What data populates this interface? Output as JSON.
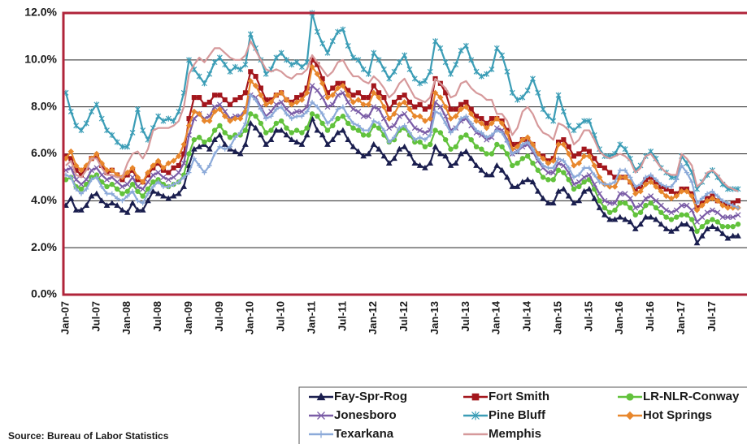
{
  "chart_data": {
    "type": "line",
    "source": "Source: Bureau of Labor Statistics",
    "categories": [
      "Jan-07",
      null,
      null,
      null,
      null,
      null,
      "Jul-07",
      null,
      null,
      null,
      null,
      null,
      "Jan-08",
      null,
      null,
      null,
      null,
      null,
      "Jul-08",
      null,
      null,
      null,
      null,
      null,
      "Jan-09",
      null,
      null,
      null,
      null,
      null,
      "Jul-09",
      null,
      null,
      null,
      null,
      null,
      "Jan-10",
      null,
      null,
      null,
      null,
      null,
      "Jul-10",
      null,
      null,
      null,
      null,
      null,
      "Jan-11",
      null,
      null,
      null,
      null,
      null,
      "Jul-11",
      null,
      null,
      null,
      null,
      null,
      "Jan-12",
      null,
      null,
      null,
      null,
      null,
      "Jul-12",
      null,
      null,
      null,
      null,
      null,
      "Jan-13",
      null,
      null,
      null,
      null,
      null,
      "Jul-13",
      null,
      null,
      null,
      null,
      null,
      "Jan-14",
      null,
      null,
      null,
      null,
      null,
      "Jul-14",
      null,
      null,
      null,
      null,
      null,
      "Jan-15",
      null,
      null,
      null,
      null,
      null,
      "Jul-15",
      null,
      null,
      null,
      null,
      null,
      "Jan-16",
      null,
      null,
      null,
      null,
      null,
      "Jul-16",
      null,
      null,
      null,
      null,
      null,
      "Jan-17",
      null,
      null,
      null,
      null,
      null,
      "Jul-17",
      null,
      null,
      null,
      null,
      null
    ],
    "ylim": [
      0,
      12
    ],
    "yticks": [
      {
        "value": 0,
        "label": "0.0%"
      },
      {
        "value": 2,
        "label": "2.0%"
      },
      {
        "value": 4,
        "label": "4.0%"
      },
      {
        "value": 6,
        "label": "6.0%"
      },
      {
        "value": 8,
        "label": "8.0%"
      },
      {
        "value": 10,
        "label": "10.0%"
      },
      {
        "value": 12,
        "label": "12.0%"
      }
    ],
    "grid": true,
    "series": [
      {
        "name": "Fay-Spr-Rog",
        "color": "#1b1f4f",
        "marker": "triangle",
        "values": [
          3.8,
          4.1,
          3.6,
          3.6,
          3.8,
          4.2,
          4.3,
          4.0,
          3.8,
          3.9,
          3.8,
          3.6,
          3.5,
          3.9,
          3.6,
          3.6,
          4.0,
          4.4,
          4.3,
          4.2,
          4.1,
          4.2,
          4.3,
          4.6,
          5.5,
          6.2,
          6.3,
          6.4,
          6.2,
          6.6,
          6.8,
          6.4,
          6.2,
          6.1,
          6.0,
          6.4,
          7.3,
          7.1,
          6.8,
          6.4,
          6.6,
          7.0,
          7.0,
          6.8,
          6.6,
          6.5,
          6.4,
          6.8,
          7.5,
          7.0,
          6.8,
          6.4,
          6.6,
          6.9,
          7.0,
          6.6,
          6.3,
          6.1,
          5.9,
          6.0,
          6.4,
          6.2,
          5.9,
          5.6,
          5.8,
          6.2,
          6.3,
          6.0,
          5.6,
          5.5,
          5.4,
          5.6,
          6.3,
          6.0,
          5.9,
          5.5,
          5.6,
          6.0,
          6.1,
          5.8,
          5.5,
          5.3,
          5.1,
          5.1,
          5.5,
          5.3,
          5.0,
          4.6,
          4.6,
          4.8,
          4.9,
          4.8,
          4.4,
          4.1,
          3.9,
          3.9,
          4.4,
          4.5,
          4.2,
          3.9,
          4.0,
          4.4,
          4.5,
          4.1,
          3.7,
          3.4,
          3.2,
          3.2,
          3.3,
          3.2,
          3.1,
          2.8,
          3.0,
          3.3,
          3.3,
          3.2,
          3.0,
          2.8,
          2.7,
          2.8,
          3.0,
          3.0,
          2.8,
          2.2,
          2.5,
          2.8,
          2.9,
          2.8,
          2.6,
          2.4,
          2.5,
          2.5
        ]
      },
      {
        "name": "Fort Smith",
        "color": "#a3161c",
        "marker": "square",
        "values": [
          5.9,
          5.8,
          5.3,
          5.1,
          5.4,
          5.8,
          5.9,
          5.5,
          5.2,
          5.3,
          5.1,
          4.9,
          5.1,
          5.3,
          4.9,
          4.8,
          5.1,
          5.4,
          5.6,
          5.3,
          5.2,
          5.4,
          5.5,
          6.0,
          7.5,
          8.4,
          8.4,
          8.1,
          8.2,
          8.5,
          8.5,
          8.3,
          8.1,
          8.3,
          8.4,
          8.6,
          9.5,
          9.3,
          8.8,
          8.3,
          8.3,
          8.5,
          8.6,
          8.3,
          8.2,
          8.4,
          8.5,
          8.8,
          10.0,
          9.8,
          9.2,
          8.6,
          8.8,
          9.0,
          9.0,
          8.7,
          8.5,
          8.6,
          8.4,
          8.4,
          8.9,
          8.6,
          8.4,
          7.9,
          8.2,
          8.4,
          8.5,
          8.2,
          8.0,
          8.1,
          7.9,
          8.0,
          9.2,
          9.0,
          8.6,
          7.9,
          7.9,
          8.1,
          8.2,
          7.9,
          7.6,
          7.5,
          7.3,
          7.5,
          7.5,
          7.4,
          7.0,
          6.4,
          6.4,
          6.6,
          6.6,
          6.4,
          6.0,
          5.9,
          5.7,
          5.8,
          6.5,
          6.6,
          6.3,
          5.9,
          6.0,
          6.2,
          6.1,
          5.8,
          5.5,
          5.4,
          5.2,
          5.0,
          5.0,
          5.0,
          4.8,
          4.5,
          4.6,
          4.9,
          5.0,
          4.8,
          4.6,
          4.5,
          4.4,
          4.3,
          4.5,
          4.5,
          4.3,
          3.7,
          3.9,
          4.1,
          4.2,
          4.0,
          3.9,
          3.8,
          3.9,
          4.0
        ]
      },
      {
        "name": "LR-NLR-Conway",
        "color": "#62c23c",
        "marker": "circle",
        "values": [
          4.9,
          5.0,
          4.6,
          4.5,
          4.7,
          5.0,
          5.1,
          4.8,
          4.6,
          4.7,
          4.5,
          4.3,
          4.4,
          4.7,
          4.4,
          4.2,
          4.5,
          4.8,
          4.9,
          4.7,
          4.6,
          4.7,
          4.8,
          5.1,
          6.0,
          6.6,
          6.7,
          6.5,
          6.6,
          7.0,
          7.2,
          6.9,
          6.7,
          6.8,
          6.8,
          7.0,
          7.7,
          7.6,
          7.3,
          6.9,
          7.0,
          7.3,
          7.4,
          7.1,
          6.9,
          7.0,
          6.9,
          7.1,
          7.7,
          7.6,
          7.3,
          7.0,
          7.2,
          7.5,
          7.6,
          7.3,
          7.1,
          7.0,
          6.8,
          6.8,
          7.2,
          7.1,
          6.8,
          6.5,
          6.6,
          7.0,
          7.1,
          6.8,
          6.5,
          6.5,
          6.3,
          6.4,
          7.0,
          6.9,
          6.6,
          6.2,
          6.3,
          6.7,
          6.8,
          6.6,
          6.3,
          6.2,
          6.0,
          6.0,
          6.4,
          6.3,
          6.0,
          5.5,
          5.6,
          5.8,
          5.9,
          5.6,
          5.3,
          5.0,
          4.9,
          4.9,
          5.3,
          5.2,
          4.9,
          4.5,
          4.6,
          4.8,
          4.9,
          4.5,
          4.0,
          3.7,
          3.5,
          3.6,
          3.9,
          3.9,
          3.7,
          3.4,
          3.5,
          3.8,
          3.9,
          3.7,
          3.5,
          3.3,
          3.2,
          3.3,
          3.4,
          3.4,
          3.2,
          2.7,
          2.9,
          3.1,
          3.2,
          3.1,
          2.9,
          2.9,
          2.9,
          3.0
        ]
      },
      {
        "name": "Jonesboro",
        "color": "#7a5ca6",
        "marker": "x",
        "values": [
          5.3,
          5.4,
          4.9,
          4.7,
          4.9,
          5.3,
          5.4,
          5.1,
          4.9,
          5.0,
          4.8,
          4.6,
          4.7,
          5.0,
          4.6,
          4.5,
          4.8,
          5.1,
          5.2,
          5.0,
          4.9,
          5.0,
          5.2,
          5.6,
          6.8,
          7.5,
          7.7,
          7.5,
          7.6,
          8.0,
          8.1,
          7.8,
          7.5,
          7.6,
          7.6,
          7.9,
          8.5,
          8.4,
          8.0,
          7.6,
          7.8,
          8.1,
          8.2,
          7.9,
          7.7,
          7.8,
          7.8,
          8.0,
          8.9,
          8.7,
          8.4,
          8.0,
          8.1,
          8.5,
          8.6,
          8.2,
          7.9,
          7.8,
          7.6,
          7.6,
          8.0,
          7.9,
          7.5,
          7.1,
          7.2,
          7.6,
          7.7,
          7.4,
          7.1,
          7.0,
          6.9,
          7.0,
          8.2,
          8.0,
          7.6,
          7.0,
          7.1,
          7.4,
          7.5,
          7.2,
          6.9,
          6.8,
          6.6,
          6.7,
          7.1,
          7.0,
          6.6,
          6.0,
          6.1,
          6.3,
          6.4,
          6.1,
          5.7,
          5.4,
          5.2,
          5.2,
          5.6,
          5.5,
          5.2,
          4.7,
          4.8,
          5.0,
          5.1,
          4.7,
          4.3,
          4.0,
          3.9,
          3.9,
          4.3,
          4.3,
          4.1,
          3.7,
          3.8,
          4.1,
          4.2,
          4.0,
          3.8,
          3.6,
          3.5,
          3.6,
          3.8,
          3.8,
          3.6,
          3.1,
          3.3,
          3.5,
          3.6,
          3.5,
          3.3,
          3.3,
          3.3,
          3.4
        ]
      },
      {
        "name": "Pine Bluff",
        "color": "#3b9db6",
        "marker": "asterisk",
        "values": [
          8.6,
          7.8,
          7.2,
          7.0,
          7.3,
          7.8,
          8.1,
          7.5,
          7.0,
          6.8,
          6.5,
          6.3,
          6.3,
          6.9,
          7.9,
          7.0,
          6.6,
          7.1,
          7.6,
          7.4,
          7.5,
          7.4,
          7.8,
          8.6,
          10.0,
          9.6,
          9.3,
          9.0,
          9.4,
          9.9,
          10.1,
          9.8,
          9.5,
          9.7,
          9.6,
          9.8,
          11.1,
          10.5,
          10.0,
          9.4,
          9.6,
          10.1,
          10.3,
          10.0,
          9.8,
          9.9,
          9.7,
          9.9,
          12.0,
          11.2,
          10.7,
          10.3,
          10.8,
          11.2,
          11.3,
          10.6,
          10.1,
          10.0,
          9.6,
          9.4,
          10.3,
          10.0,
          9.6,
          9.2,
          9.5,
          9.9,
          10.2,
          9.6,
          9.2,
          9.0,
          9.1,
          9.5,
          10.8,
          10.5,
          9.9,
          9.4,
          9.8,
          10.4,
          10.6,
          10.0,
          9.5,
          9.3,
          9.4,
          9.6,
          10.5,
          10.2,
          9.5,
          8.6,
          8.3,
          8.4,
          8.7,
          9.2,
          8.6,
          7.9,
          7.6,
          7.4,
          8.5,
          7.8,
          7.2,
          7.0,
          7.2,
          7.4,
          7.4,
          6.8,
          6.2,
          5.9,
          5.9,
          6.0,
          6.4,
          6.2,
          5.8,
          5.3,
          5.5,
          5.9,
          6.1,
          5.8,
          5.4,
          5.2,
          5.0,
          5.0,
          5.9,
          5.6,
          5.2,
          4.5,
          4.8,
          5.1,
          5.3,
          5.0,
          4.7,
          4.5,
          4.5,
          4.5
        ]
      },
      {
        "name": "Hot Springs",
        "color": "#e8872c",
        "marker": "diamond",
        "values": [
          5.8,
          6.1,
          5.5,
          5.3,
          5.5,
          5.8,
          6.0,
          5.6,
          5.3,
          5.3,
          5.1,
          5.0,
          5.2,
          5.4,
          5.0,
          4.8,
          5.2,
          5.5,
          5.7,
          5.4,
          5.6,
          5.7,
          5.9,
          6.4,
          7.2,
          7.8,
          7.7,
          7.4,
          7.4,
          7.8,
          7.9,
          7.6,
          7.4,
          7.5,
          7.5,
          7.8,
          9.1,
          8.9,
          8.5,
          8.1,
          8.2,
          8.5,
          8.6,
          8.3,
          8.1,
          8.2,
          8.3,
          8.6,
          9.7,
          9.4,
          9.0,
          8.4,
          8.5,
          8.8,
          8.9,
          8.5,
          8.2,
          8.3,
          8.1,
          8.1,
          8.6,
          8.4,
          8.0,
          7.5,
          7.7,
          8.1,
          8.2,
          7.9,
          7.6,
          7.6,
          7.4,
          7.5,
          8.6,
          8.4,
          8.0,
          7.5,
          7.6,
          7.9,
          8.0,
          7.7,
          7.4,
          7.3,
          7.1,
          7.3,
          7.5,
          7.3,
          6.9,
          6.2,
          6.3,
          6.6,
          6.7,
          6.4,
          6.0,
          5.8,
          5.6,
          5.7,
          6.4,
          6.4,
          6.0,
          5.5,
          5.6,
          5.9,
          5.9,
          5.5,
          5.0,
          4.7,
          4.6,
          4.6,
          5.0,
          5.0,
          4.8,
          4.3,
          4.4,
          4.7,
          4.8,
          4.6,
          4.4,
          4.2,
          4.1,
          4.2,
          4.4,
          4.4,
          4.2,
          3.6,
          3.8,
          4.0,
          4.1,
          4.0,
          3.8,
          3.7,
          3.7,
          3.7
        ]
      },
      {
        "name": "Texarkana",
        "color": "#8caad9",
        "marker": "plus",
        "values": [
          5.1,
          5.0,
          4.5,
          4.3,
          4.5,
          4.9,
          5.0,
          4.6,
          4.3,
          4.3,
          4.1,
          4.0,
          4.2,
          4.4,
          4.0,
          3.9,
          4.3,
          4.6,
          4.8,
          4.6,
          4.6,
          4.7,
          4.8,
          5.0,
          5.2,
          5.8,
          5.5,
          5.2,
          5.5,
          6.0,
          6.3,
          6.2,
          6.3,
          6.7,
          6.9,
          7.3,
          8.5,
          8.3,
          7.9,
          7.5,
          7.6,
          7.9,
          8.0,
          7.7,
          7.5,
          7.6,
          7.6,
          7.8,
          8.2,
          8.0,
          7.7,
          7.3,
          7.5,
          7.9,
          8.0,
          7.6,
          7.3,
          7.2,
          7.0,
          7.0,
          7.4,
          7.3,
          7.0,
          6.5,
          6.7,
          7.1,
          7.2,
          6.9,
          6.6,
          6.7,
          6.6,
          6.8,
          7.8,
          7.7,
          7.3,
          6.9,
          7.1,
          7.5,
          7.6,
          7.3,
          7.0,
          6.9,
          6.7,
          6.8,
          7.0,
          6.9,
          6.5,
          6.0,
          6.1,
          6.4,
          6.5,
          6.2,
          5.8,
          5.5,
          5.4,
          5.4,
          5.8,
          5.7,
          5.4,
          5.0,
          5.1,
          5.4,
          5.4,
          5.1,
          4.8,
          4.7,
          4.7,
          4.8,
          5.3,
          5.3,
          5.0,
          4.6,
          4.7,
          5.0,
          5.1,
          4.9,
          4.7,
          4.6,
          4.6,
          4.9,
          5.5,
          5.2,
          4.8,
          3.9,
          4.1,
          4.3,
          4.4,
          4.2,
          4.0,
          3.9,
          3.8,
          3.7
        ]
      },
      {
        "name": "Memphis",
        "color": "#d6999b",
        "marker": "none",
        "values": [
          5.5,
          5.7,
          5.1,
          5.0,
          5.3,
          5.8,
          5.8,
          5.4,
          5.1,
          5.1,
          5.0,
          5.0,
          5.6,
          6.0,
          6.1,
          5.8,
          6.2,
          7.0,
          7.1,
          7.1,
          7.1,
          7.2,
          7.4,
          8.0,
          9.4,
          9.8,
          10.1,
          9.9,
          10.2,
          10.5,
          10.5,
          10.3,
          10.1,
          10.0,
          10.0,
          10.2,
          10.8,
          10.4,
          10.0,
          9.6,
          9.5,
          9.6,
          9.5,
          9.3,
          9.2,
          9.4,
          9.4,
          9.6,
          10.2,
          9.9,
          9.6,
          9.3,
          9.5,
          9.9,
          10.0,
          9.6,
          9.3,
          9.3,
          9.1,
          9.0,
          9.3,
          9.1,
          8.8,
          8.4,
          8.6,
          9.0,
          9.2,
          8.8,
          8.4,
          8.3,
          8.2,
          8.4,
          9.2,
          9.0,
          8.8,
          8.4,
          8.5,
          9.0,
          9.1,
          8.8,
          8.6,
          8.5,
          8.3,
          8.3,
          7.7,
          7.7,
          7.4,
          6.8,
          7.1,
          7.8,
          8.0,
          7.7,
          7.2,
          6.9,
          6.8,
          6.6,
          7.3,
          7.2,
          7.0,
          6.4,
          6.6,
          7.0,
          7.0,
          6.6,
          6.1,
          5.9,
          5.8,
          5.9,
          6.0,
          5.9,
          5.7,
          5.2,
          5.4,
          5.9,
          6.0,
          5.7,
          5.4,
          5.2,
          5.1,
          5.1,
          6.0,
          5.8,
          5.5,
          4.6,
          4.8,
          5.2,
          5.3,
          5.1,
          4.8,
          4.6,
          4.5,
          4.4
        ]
      }
    ]
  }
}
